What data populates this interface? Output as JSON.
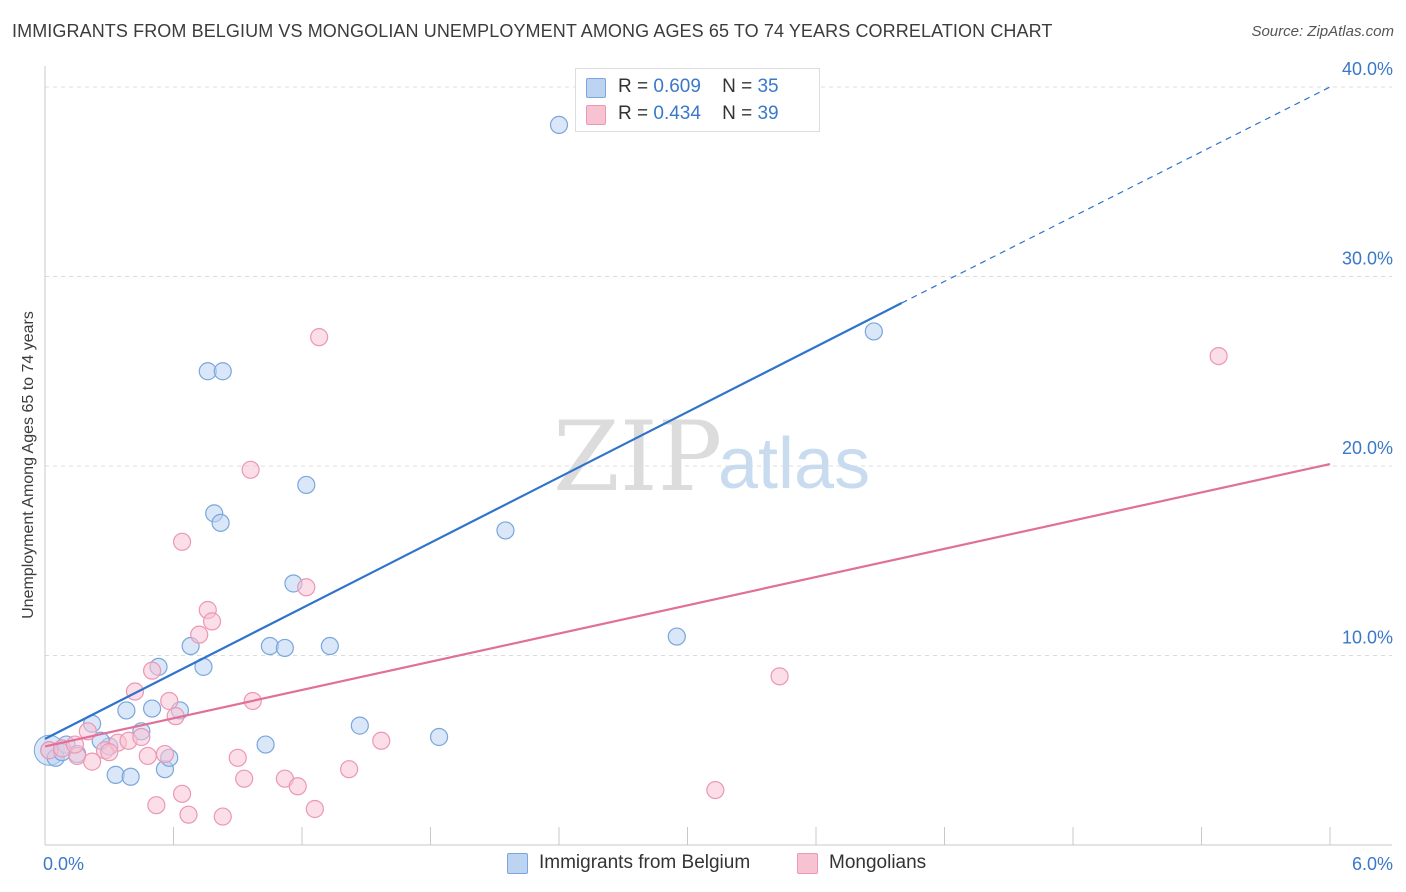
{
  "title": "IMMIGRANTS FROM BELGIUM VS MONGOLIAN UNEMPLOYMENT AMONG AGES 65 TO 74 YEARS CORRELATION CHART",
  "source": "Source: ZipAtlas.com",
  "watermark": {
    "zip": "ZIP",
    "atlas": "atlas"
  },
  "legend": {
    "r_label": "R =",
    "n_label": "N =",
    "items": [
      {
        "r": "0.609",
        "n": "35"
      },
      {
        "r": "0.434",
        "n": "39"
      }
    ]
  },
  "colors": {
    "blue_fill": "#bcd4f2",
    "blue_stroke": "#7aa6dc",
    "blue_line": "#2f73cc",
    "pink_fill": "#f7c3d3",
    "pink_stroke": "#ec97b3",
    "pink_line": "#e0709a",
    "grid": "#dcdcdc",
    "tick_text": "#3a78c9"
  },
  "chart_data": {
    "type": "scatter",
    "title": "IMMIGRANTS FROM BELGIUM VS MONGOLIAN UNEMPLOYMENT AMONG AGES 65 TO 74 YEARS CORRELATION CHART",
    "xlabel": "",
    "ylabel": "Unemployment Among Ages 65 to 74 years",
    "xlim": [
      0,
      6
    ],
    "ylim": [
      0,
      40
    ],
    "x_tick_labels": [
      {
        "value": 0,
        "label": "0.0%"
      },
      {
        "value": 6,
        "label": "6.0%"
      }
    ],
    "y_tick_labels": [
      {
        "value": 10,
        "label": "10.0%"
      },
      {
        "value": 20,
        "label": "20.0%"
      },
      {
        "value": 30,
        "label": "30.0%"
      },
      {
        "value": 40,
        "label": "40.0%"
      }
    ],
    "x_minor_ticks": [
      0.6,
      1.2,
      1.8,
      2.4,
      3.0,
      3.6,
      4.2,
      4.8,
      5.4,
      6.0
    ],
    "grid": true,
    "series": [
      {
        "name": "Immigrants from Belgium",
        "color": "blue",
        "points": [
          [
            0.02,
            5.0
          ],
          [
            0.05,
            4.6
          ],
          [
            0.1,
            5.3
          ],
          [
            0.15,
            4.8
          ],
          [
            0.22,
            6.4
          ],
          [
            0.3,
            5.2
          ],
          [
            0.33,
            3.7
          ],
          [
            0.38,
            7.1
          ],
          [
            0.4,
            3.6
          ],
          [
            0.45,
            6.0
          ],
          [
            0.5,
            7.2
          ],
          [
            0.53,
            9.4
          ],
          [
            0.56,
            4.0
          ],
          [
            0.58,
            4.6
          ],
          [
            0.63,
            7.1
          ],
          [
            0.68,
            10.5
          ],
          [
            0.74,
            9.4
          ],
          [
            0.76,
            25.0
          ],
          [
            0.79,
            17.5
          ],
          [
            0.82,
            17.0
          ],
          [
            0.83,
            25.0
          ],
          [
            1.03,
            5.3
          ],
          [
            1.05,
            10.5
          ],
          [
            1.12,
            10.4
          ],
          [
            1.16,
            13.8
          ],
          [
            1.22,
            19.0
          ],
          [
            1.33,
            10.5
          ],
          [
            1.47,
            6.3
          ],
          [
            1.84,
            5.7
          ],
          [
            2.15,
            16.6
          ],
          [
            2.4,
            38.0
          ],
          [
            2.95,
            11.0
          ],
          [
            3.87,
            27.1
          ],
          [
            0.26,
            5.5
          ],
          [
            0.08,
            4.9
          ]
        ]
      },
      {
        "name": "Mongolians",
        "color": "pink",
        "points": [
          [
            0.02,
            5.0
          ],
          [
            0.08,
            5.1
          ],
          [
            0.15,
            4.7
          ],
          [
            0.2,
            6.0
          ],
          [
            0.22,
            4.4
          ],
          [
            0.28,
            5.0
          ],
          [
            0.34,
            5.4
          ],
          [
            0.39,
            5.5
          ],
          [
            0.42,
            8.1
          ],
          [
            0.45,
            5.7
          ],
          [
            0.48,
            4.7
          ],
          [
            0.5,
            9.2
          ],
          [
            0.52,
            2.1
          ],
          [
            0.58,
            7.6
          ],
          [
            0.61,
            6.8
          ],
          [
            0.64,
            2.7
          ],
          [
            0.64,
            16.0
          ],
          [
            0.67,
            1.6
          ],
          [
            0.72,
            11.1
          ],
          [
            0.76,
            12.4
          ],
          [
            0.78,
            11.8
          ],
          [
            0.83,
            1.5
          ],
          [
            0.9,
            4.6
          ],
          [
            0.93,
            3.5
          ],
          [
            0.96,
            19.8
          ],
          [
            0.97,
            7.6
          ],
          [
            1.12,
            3.5
          ],
          [
            1.18,
            3.1
          ],
          [
            1.22,
            13.6
          ],
          [
            1.26,
            1.9
          ],
          [
            1.28,
            26.8
          ],
          [
            1.42,
            4.0
          ],
          [
            1.57,
            5.5
          ],
          [
            3.13,
            2.9
          ],
          [
            3.43,
            8.9
          ],
          [
            5.48,
            25.8
          ],
          [
            0.14,
            5.3
          ],
          [
            0.3,
            4.9
          ],
          [
            0.56,
            4.8
          ]
        ]
      }
    ],
    "trendlines": [
      {
        "series": "Immigrants from Belgium",
        "x": [
          0,
          4.0
        ],
        "y": [
          5.6,
          28.6
        ],
        "dashed_extension": {
          "x": [
            4.0,
            6.0
          ],
          "y": [
            28.6,
            40.0
          ]
        }
      },
      {
        "series": "Mongolians",
        "x": [
          0,
          6.0
        ],
        "y": [
          5.2,
          20.1
        ]
      }
    ]
  }
}
